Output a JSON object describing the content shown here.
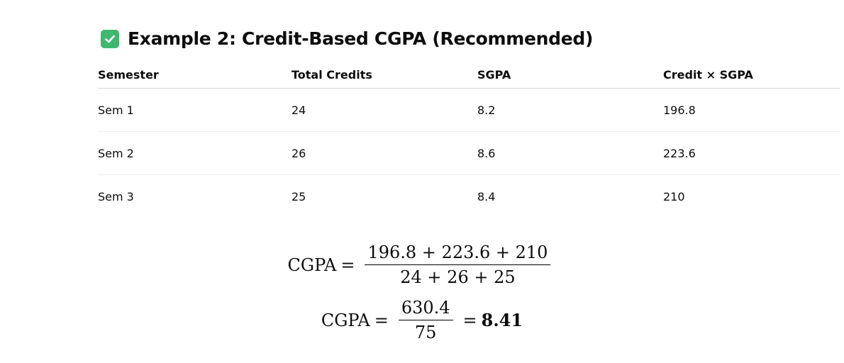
{
  "heading": {
    "icon": "check-mark-button-icon",
    "text": "Example 2: Credit-Based CGPA (Recommended)",
    "icon_color": "#3fb86f"
  },
  "table": {
    "headers": [
      "Semester",
      "Total Credits",
      "SGPA",
      "Credit × SGPA"
    ],
    "rows": [
      [
        "Sem 1",
        "24",
        "8.2",
        "196.8"
      ],
      [
        "Sem 2",
        "26",
        "8.6",
        "223.6"
      ],
      [
        "Sem 3",
        "25",
        "8.4",
        "210"
      ]
    ]
  },
  "formula1": {
    "lhs": "CGPA",
    "eq": "=",
    "numerator": "196.8 + 223.6 + 210",
    "denominator": "24 + 26 + 25"
  },
  "formula2": {
    "lhs": "CGPA",
    "eq": "=",
    "numerator": "630.4",
    "denominator": "75",
    "eq2": "=",
    "result": "8.41"
  }
}
